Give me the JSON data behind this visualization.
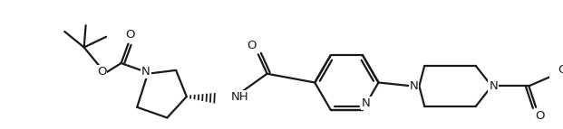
{
  "bg_color": "#ffffff",
  "line_color": "#1a1a1a",
  "bond_lw": 1.6,
  "figsize": [
    6.21,
    1.43
  ],
  "dpi": 100,
  "xlim": [
    0,
    621
  ],
  "ylim": [
    0,
    143
  ]
}
